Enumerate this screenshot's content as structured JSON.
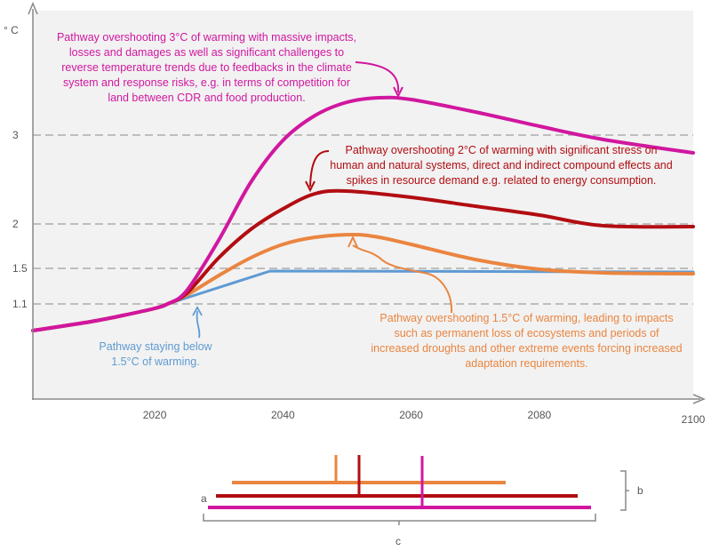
{
  "chart_data": {
    "type": "line",
    "ylabel": "° C",
    "xlabel": "",
    "xlim": [
      2001,
      2104
    ],
    "ylim": [
      0.04,
      4.4
    ],
    "grid": "dashed reference lines at 1.1, 1.5, 2, 3",
    "x_ticks": [
      2020,
      2040,
      2060,
      2080,
      2100
    ],
    "y_ticks": [
      1.1,
      1.5,
      2,
      3
    ],
    "background": "#f2f2f2",
    "series": [
      {
        "key": "magenta",
        "color": "#d1179f",
        "points": [
          [
            2001,
            0.8
          ],
          [
            2010,
            0.9
          ],
          [
            2015,
            0.97
          ],
          [
            2020,
            1.05
          ],
          [
            2022,
            1.1
          ],
          [
            2025,
            1.25
          ],
          [
            2030,
            1.82
          ],
          [
            2035,
            2.47
          ],
          [
            2040,
            2.94
          ],
          [
            2045,
            3.22
          ],
          [
            2050,
            3.37
          ],
          [
            2055,
            3.42
          ],
          [
            2060,
            3.4
          ],
          [
            2070,
            3.26
          ],
          [
            2080,
            3.1
          ],
          [
            2090,
            2.95
          ],
          [
            2104,
            2.8
          ]
        ]
      },
      {
        "key": "red",
        "color": "#b20d12",
        "points": [
          [
            2001,
            0.8
          ],
          [
            2010,
            0.9
          ],
          [
            2015,
            0.97
          ],
          [
            2020,
            1.05
          ],
          [
            2022,
            1.1
          ],
          [
            2025,
            1.22
          ],
          [
            2030,
            1.62
          ],
          [
            2035,
            1.94
          ],
          [
            2040,
            2.17
          ],
          [
            2045,
            2.34
          ],
          [
            2050,
            2.37
          ],
          [
            2060,
            2.3
          ],
          [
            2070,
            2.2
          ],
          [
            2080,
            2.1
          ],
          [
            2090,
            1.98
          ],
          [
            2104,
            1.97
          ]
        ]
      },
      {
        "key": "orange",
        "color": "#ea8540",
        "points": [
          [
            2001,
            0.8
          ],
          [
            2010,
            0.9
          ],
          [
            2015,
            0.97
          ],
          [
            2020,
            1.05
          ],
          [
            2022,
            1.1
          ],
          [
            2025,
            1.2
          ],
          [
            2030,
            1.42
          ],
          [
            2035,
            1.62
          ],
          [
            2040,
            1.77
          ],
          [
            2045,
            1.85
          ],
          [
            2051,
            1.88
          ],
          [
            2055,
            1.85
          ],
          [
            2060,
            1.77
          ],
          [
            2070,
            1.6
          ],
          [
            2080,
            1.49
          ],
          [
            2090,
            1.45
          ],
          [
            2104,
            1.44
          ]
        ]
      },
      {
        "key": "blue",
        "color": "#5e9ad3",
        "points": [
          [
            2001,
            0.8
          ],
          [
            2010,
            0.9
          ],
          [
            2015,
            0.97
          ],
          [
            2020,
            1.05
          ],
          [
            2022,
            1.1
          ],
          [
            2038,
            1.47
          ],
          [
            2104,
            1.46
          ]
        ]
      }
    ],
    "annotations": {
      "magenta": "Pathway overshooting 3°C of warming with massive impacts, losses and damages as well as significant challenges to reverse temperature trends due to feedbacks in the climate system and response risks, e.g. in terms of competition for land between CDR and food production.",
      "red": "Pathway overshooting 2°C of warming with significant stress on human and natural systems, direct and indirect compound effects and spikes in resource demand e.g. related to energy consumption.",
      "orange": "Pathway overshooting 1.5°C of warming, leading to impacts such as permanent loss of ecosystems and periods of increased droughts and other extreme events forcing increased adaptation requirements.",
      "blue": "Pathway staying below 1.5°C of warming."
    }
  },
  "timeline": {
    "label_a": "a",
    "label_b": "b",
    "label_c": "c"
  }
}
